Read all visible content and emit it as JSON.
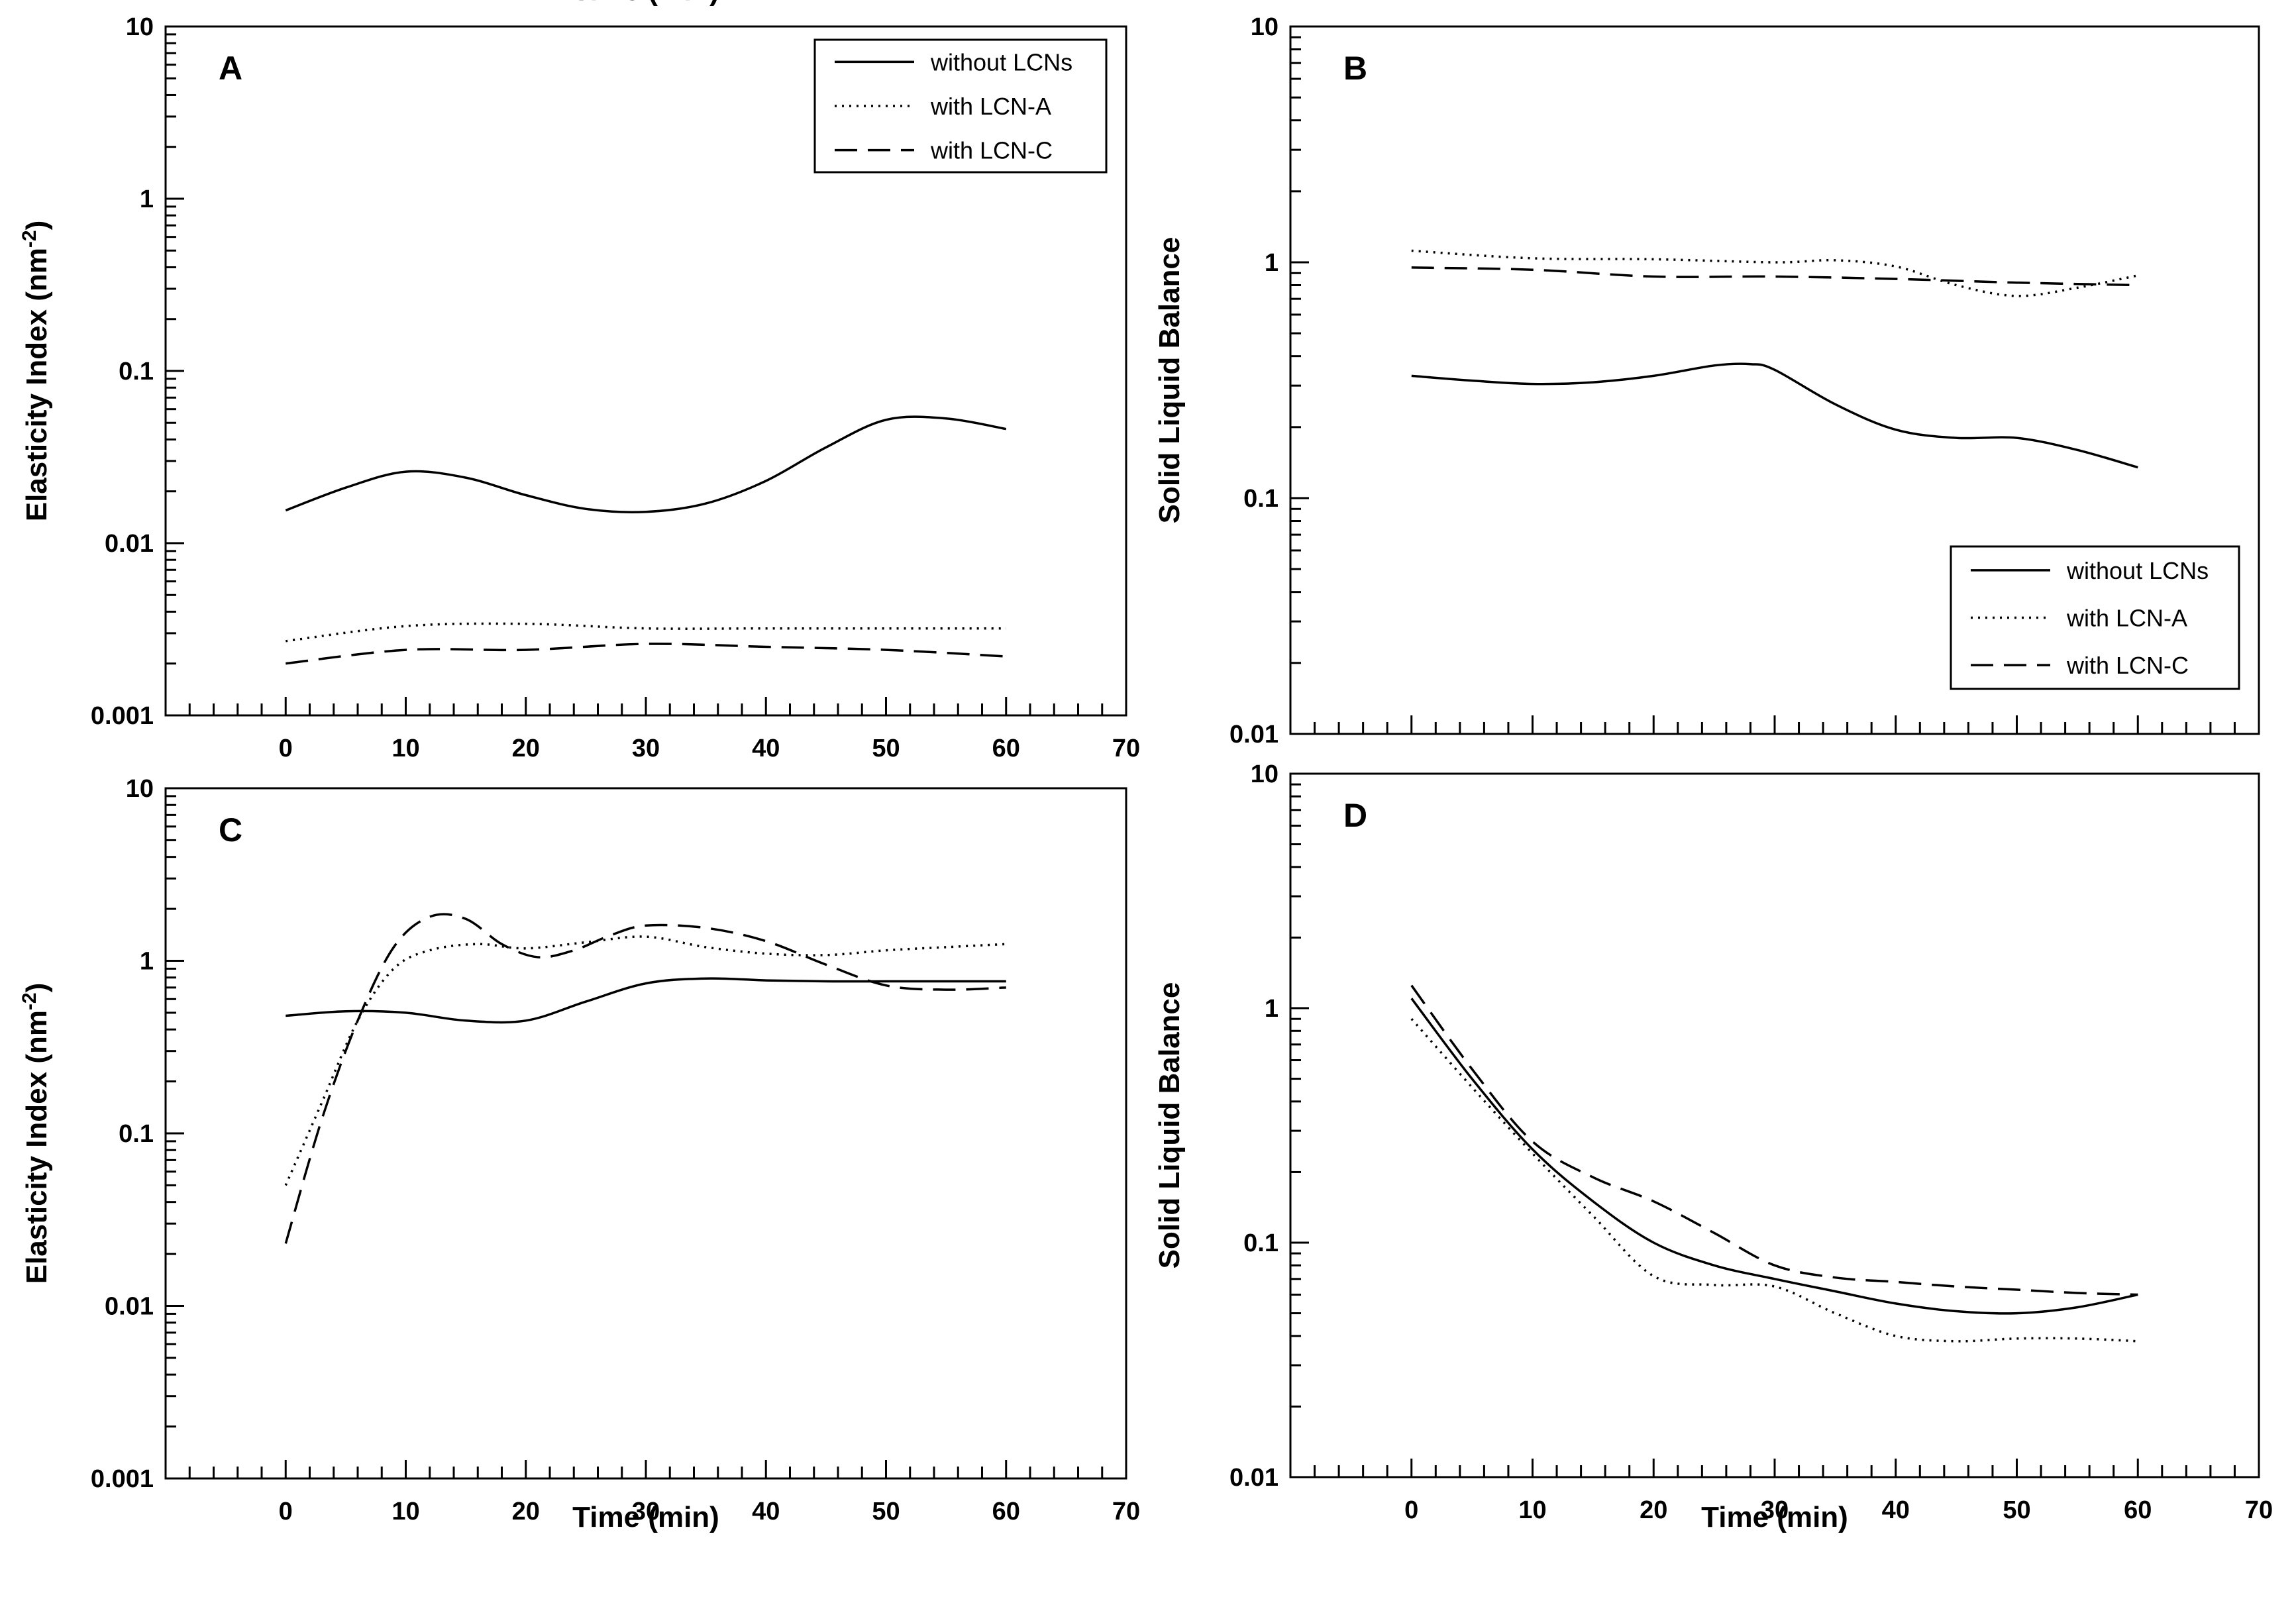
{
  "chart_data": [
    {
      "panel": "A",
      "type": "line",
      "xlabel": "Time (min)",
      "ylabel": "Elasticity Index (nm-2)",
      "ylabel_main": "Elasticity Index (nm",
      "ylabel_sup": "-2",
      "ylabel_end": ")",
      "y_scale": "log",
      "xlim": [
        -10,
        70
      ],
      "ylim": [
        0.001,
        10
      ],
      "xticks": [
        "0",
        "10",
        "20",
        "30",
        "40",
        "50",
        "60",
        "70"
      ],
      "yticks": [
        "0.001",
        "0.01",
        "0.1",
        "1",
        "10"
      ],
      "legend_position": "top-right",
      "series": [
        {
          "name": "without LCNs",
          "style": "solid",
          "x": [
            0,
            5,
            10,
            15,
            20,
            25,
            30,
            35,
            40,
            45,
            50,
            55,
            60
          ],
          "y": [
            0.0155,
            0.021,
            0.026,
            0.024,
            0.019,
            0.0158,
            0.0152,
            0.017,
            0.023,
            0.036,
            0.052,
            0.053,
            0.046
          ]
        },
        {
          "name": "with LCN-A",
          "style": "dotted",
          "x": [
            0,
            10,
            20,
            30,
            40,
            50,
            60
          ],
          "y": [
            0.0027,
            0.0033,
            0.0034,
            0.0032,
            0.0032,
            0.0032,
            0.0032
          ]
        },
        {
          "name": "with LCN-C",
          "style": "dashed",
          "x": [
            0,
            10,
            20,
            30,
            40,
            50,
            60
          ],
          "y": [
            0.002,
            0.0024,
            0.0024,
            0.0026,
            0.0025,
            0.0024,
            0.0022
          ]
        }
      ]
    },
    {
      "panel": "B",
      "type": "line",
      "xlabel": "",
      "ylabel": "Solid Liquid Balance",
      "y_scale": "log",
      "xlim": [
        -10,
        70
      ],
      "ylim": [
        0.01,
        10
      ],
      "xticks": [],
      "yticks": [
        "0.01",
        "0.1",
        "1",
        "10"
      ],
      "legend_position": "bottom-right",
      "series": [
        {
          "name": "without LCNs",
          "style": "solid",
          "x": [
            0,
            5,
            10,
            15,
            20,
            25,
            28,
            30,
            35,
            40,
            45,
            50,
            55,
            60
          ],
          "y": [
            0.33,
            0.315,
            0.305,
            0.31,
            0.33,
            0.365,
            0.37,
            0.35,
            0.25,
            0.195,
            0.18,
            0.18,
            0.16,
            0.135
          ]
        },
        {
          "name": "with LCN-A",
          "style": "dotted",
          "x": [
            0,
            10,
            20,
            30,
            35,
            40,
            45,
            50,
            55,
            60
          ],
          "y": [
            1.12,
            1.04,
            1.03,
            1.0,
            1.02,
            0.96,
            0.8,
            0.72,
            0.78,
            0.88
          ]
        },
        {
          "name": "with LCN-C",
          "style": "dashed",
          "x": [
            0,
            10,
            20,
            30,
            40,
            50,
            60
          ],
          "y": [
            0.95,
            0.93,
            0.87,
            0.87,
            0.85,
            0.82,
            0.8
          ]
        }
      ]
    },
    {
      "panel": "C",
      "type": "line",
      "xlabel": "Time (min)",
      "ylabel": "Elasticity Index (nm-2)",
      "ylabel_main": "Elasticity Index (nm",
      "ylabel_sup": "-2",
      "ylabel_end": ")",
      "y_scale": "log",
      "xlim": [
        -10,
        70
      ],
      "ylim": [
        0.001,
        10
      ],
      "xticks": [
        "0",
        "10",
        "20",
        "30",
        "40",
        "50",
        "60",
        "70"
      ],
      "yticks": [
        "0.001",
        "0.01",
        "0.1",
        "1",
        "10"
      ],
      "legend_position": "none",
      "series": [
        {
          "name": "without LCNs",
          "style": "solid",
          "x": [
            0,
            5,
            10,
            15,
            20,
            25,
            30,
            35,
            40,
            45,
            50,
            55,
            60
          ],
          "y": [
            0.48,
            0.51,
            0.5,
            0.45,
            0.45,
            0.58,
            0.74,
            0.79,
            0.77,
            0.76,
            0.76,
            0.76,
            0.76
          ]
        },
        {
          "name": "with LCN-A",
          "style": "dotted",
          "x": [
            0,
            3,
            6,
            9,
            12,
            16,
            20,
            25,
            30,
            35,
            40,
            45,
            50,
            55,
            60
          ],
          "y": [
            0.05,
            0.15,
            0.45,
            0.9,
            1.15,
            1.25,
            1.18,
            1.28,
            1.38,
            1.2,
            1.1,
            1.08,
            1.15,
            1.2,
            1.25
          ]
        },
        {
          "name": "with LCN-C",
          "style": "dashed",
          "x": [
            0,
            3,
            6,
            9,
            12,
            15,
            18,
            21,
            24,
            27,
            30,
            35,
            40,
            45,
            50,
            55,
            60
          ],
          "y": [
            0.023,
            0.12,
            0.45,
            1.2,
            1.8,
            1.75,
            1.25,
            1.05,
            1.15,
            1.4,
            1.6,
            1.55,
            1.3,
            0.95,
            0.72,
            0.68,
            0.7
          ]
        }
      ]
    },
    {
      "panel": "D",
      "type": "line",
      "xlabel": "Time (min)",
      "ylabel": "Solid Liquid Balance",
      "y_scale": "log",
      "xlim": [
        -10,
        70
      ],
      "ylim": [
        0.01,
        10
      ],
      "xticks": [
        "0",
        "10",
        "20",
        "30",
        "40",
        "50",
        "60",
        "70"
      ],
      "yticks": [
        "0.01",
        "0.1",
        "1",
        "10"
      ],
      "legend_position": "none",
      "series": [
        {
          "name": "without LCNs",
          "style": "solid",
          "x": [
            0,
            5,
            10,
            15,
            20,
            25,
            30,
            35,
            40,
            45,
            50,
            55,
            60
          ],
          "y": [
            1.1,
            0.5,
            0.25,
            0.15,
            0.1,
            0.08,
            0.07,
            0.062,
            0.055,
            0.051,
            0.05,
            0.053,
            0.06
          ]
        },
        {
          "name": "with LCN-A",
          "style": "dotted",
          "x": [
            0,
            5,
            10,
            15,
            20,
            25,
            30,
            35,
            40,
            45,
            50,
            55,
            60
          ],
          "y": [
            0.9,
            0.46,
            0.24,
            0.13,
            0.072,
            0.066,
            0.065,
            0.05,
            0.04,
            0.038,
            0.039,
            0.039,
            0.038
          ]
        },
        {
          "name": "with LCN-C",
          "style": "dashed",
          "x": [
            0,
            5,
            10,
            15,
            20,
            25,
            30,
            35,
            40,
            45,
            50,
            55,
            60
          ],
          "y": [
            1.25,
            0.55,
            0.27,
            0.19,
            0.15,
            0.11,
            0.08,
            0.071,
            0.068,
            0.065,
            0.063,
            0.061,
            0.06
          ]
        }
      ]
    }
  ]
}
